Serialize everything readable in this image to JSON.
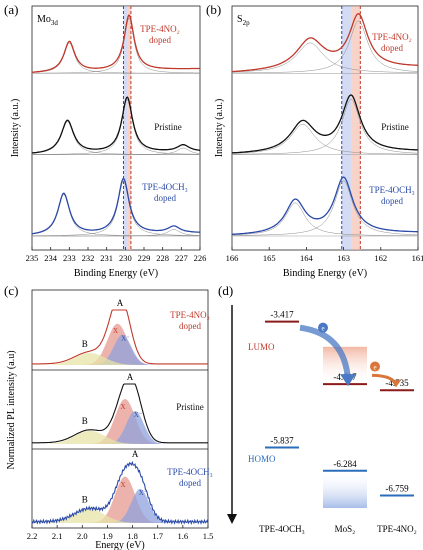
{
  "chart_data": [
    {
      "panel": "(a)",
      "type": "line",
      "title": "Mo3d",
      "xlabel": "Binding Energy (eV)",
      "ylabel": "Intensity (a.u.)",
      "xlim": [
        235,
        226
      ],
      "x_ticks": [
        "235",
        "234",
        "233",
        "232",
        "231",
        "230",
        "229",
        "228",
        "227",
        "226"
      ],
      "traces": [
        {
          "name": "TPE-4NO2 doped",
          "color": "#c0392b",
          "peaks": [
            {
              "center": 233.0,
              "height": 0.55,
              "width": 0.35
            },
            {
              "center": 229.8,
              "height": 1.0,
              "width": 0.32
            }
          ],
          "background": 0.08
        },
        {
          "name": "Pristine",
          "color": "#111111",
          "peaks": [
            {
              "center": 233.1,
              "height": 0.6,
              "width": 0.4
            },
            {
              "center": 229.9,
              "height": 1.0,
              "width": 0.35
            },
            {
              "center": 226.9,
              "height": 0.12,
              "width": 0.4
            }
          ],
          "background": 0.05
        },
        {
          "name": "TPE-4OCH3 doped",
          "color": "#2b4aa8",
          "peaks": [
            {
              "center": 233.3,
              "height": 0.75,
              "width": 0.38
            },
            {
              "center": 230.1,
              "height": 1.0,
              "width": 0.36
            },
            {
              "center": 227.4,
              "height": 0.12,
              "width": 0.4
            }
          ],
          "background": 0.05
        }
      ],
      "reference_lines": [
        230.1,
        229.7
      ],
      "labels": {
        "top": "TPE-4NO₂\ndoped",
        "middle": "Pristine",
        "bottom": "TPE-4OCH₃\ndoped"
      }
    },
    {
      "panel": "(b)",
      "type": "line",
      "title": "S2p",
      "xlabel": "Binding Energy (eV)",
      "ylabel": "Intensity (a.u.)",
      "xlim": [
        166,
        161
      ],
      "x_ticks": [
        "166",
        "165",
        "164",
        "163",
        "162",
        "161"
      ],
      "traces": [
        {
          "name": "TPE-4NO2 doped",
          "color": "#c0392b",
          "peaks": [
            {
              "center": 163.9,
              "height": 0.55,
              "width": 0.45
            },
            {
              "center": 162.6,
              "height": 0.95,
              "width": 0.3
            }
          ],
          "background": 0.1
        },
        {
          "name": "Pristine",
          "color": "#111111",
          "peaks": [
            {
              "center": 164.1,
              "height": 0.55,
              "width": 0.4
            },
            {
              "center": 162.8,
              "height": 1.0,
              "width": 0.3
            }
          ],
          "background": 0.05
        },
        {
          "name": "TPE-4OCH3 doped",
          "color": "#2b4aa8",
          "peaks": [
            {
              "center": 164.3,
              "height": 0.6,
              "width": 0.32
            },
            {
              "center": 163.0,
              "height": 1.0,
              "width": 0.3
            }
          ],
          "background": 0.05
        }
      ],
      "reference_lines": [
        163.05,
        162.55
      ],
      "labels": {
        "top": "TPE-4NO₂\ndoped",
        "middle": "Pristine",
        "bottom": "TPE-4OCH₃\ndoped"
      }
    },
    {
      "panel": "(c)",
      "type": "line",
      "xlabel": "Energy (eV)",
      "ylabel": "Normalized PL intensity (a.u)",
      "xlim": [
        2.2,
        1.5
      ],
      "x_ticks": [
        "2.2",
        "2.1",
        "2.0",
        "1.9",
        "1.8",
        "1.7",
        "1.6",
        "1.5"
      ],
      "peak_labels": [
        "A",
        "B",
        "X",
        "X⁻"
      ],
      "labels": {
        "top": "TPE-4NO₂\ndoped",
        "middle": "Pristine",
        "bottom": "TPE-4OCH₃\ndoped"
      }
    },
    {
      "panel": "(d)",
      "type": "diagram",
      "lumo_label": "LUMO",
      "homo_label": "HOMO",
      "materials": [
        {
          "name": "TPE-4OCH₃",
          "lumo": "-3.417",
          "homo": "-5.837",
          "lumo_v": -3.417,
          "homo_v": -5.837
        },
        {
          "name": "MoS₂",
          "lumo": "-4.617",
          "homo": "-6.284",
          "lumo_v": -4.617,
          "homo_v": -6.284
        },
        {
          "name": "TPE-4NO₂",
          "lumo": "-4.735",
          "homo": "-6.759",
          "lumo_v": -4.735,
          "homo_v": -6.759
        }
      ],
      "electron_symbol": "e"
    }
  ],
  "colors": {
    "red": "#c0392b",
    "blue": "#2b4aa8",
    "black": "#111111",
    "lumo_line": "#8b1a1a",
    "homo_line": "#2a6ebb"
  }
}
